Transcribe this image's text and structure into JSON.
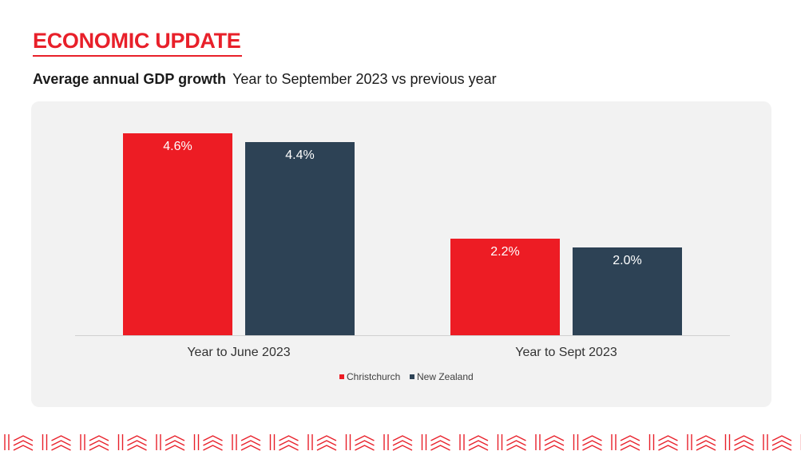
{
  "header": {
    "title": "ECONOMIC UPDATE",
    "subtitle_bold": "Average annual GDP growth",
    "subtitle_rest": "Year to September 2023 vs previous year"
  },
  "colors": {
    "accent": "#e8202a",
    "christchurch": "#ed1c24",
    "new_zealand": "#2d4255",
    "panel": "#f2f2f2"
  },
  "chart_data": {
    "type": "bar",
    "categories": [
      "Year to June 2023",
      "Year to Sept 2023"
    ],
    "series": [
      {
        "name": "Christchurch",
        "values": [
          4.6,
          2.2
        ],
        "labels": [
          "4.6%",
          "2.2%"
        ]
      },
      {
        "name": "New Zealand",
        "values": [
          4.4,
          2.0
        ],
        "labels": [
          "4.4%",
          "2.0%"
        ]
      }
    ],
    "ylim": [
      0,
      4.6
    ],
    "grid": false,
    "legend": "bottom-center",
    "unit": "%"
  }
}
